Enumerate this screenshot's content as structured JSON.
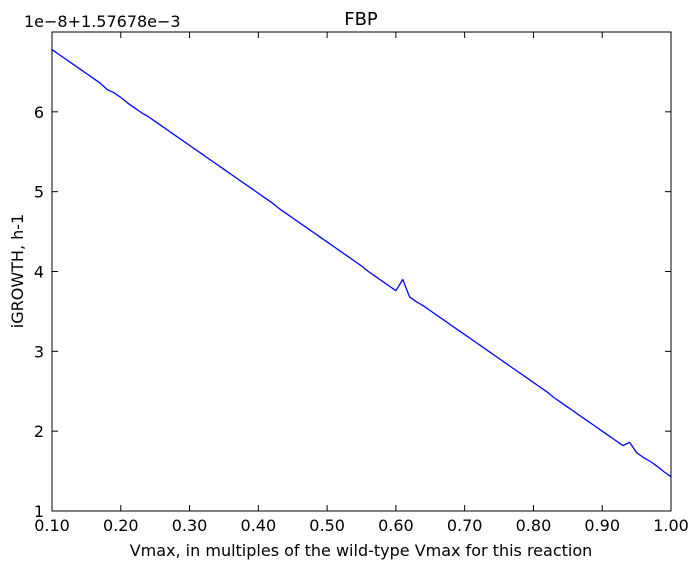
{
  "chart_data": {
    "type": "line",
    "title": "FBP",
    "xlabel": "Vmax, in multiples of the wild-type Vmax for this reaction",
    "ylabel": "iGROWTH, h-1",
    "y_offset_label": "1e−8+1.57678e−3",
    "xlim": [
      0.1,
      1.0
    ],
    "ylim": [
      1,
      7
    ],
    "grid": false,
    "line_color": "#0000ff",
    "x_ticks": [
      0.1,
      0.2,
      0.3,
      0.4,
      0.5,
      0.6,
      0.7,
      0.8,
      0.9,
      1.0
    ],
    "x_tick_labels": [
      "0.10",
      "0.20",
      "0.30",
      "0.40",
      "0.50",
      "0.60",
      "0.70",
      "0.80",
      "0.90",
      "1.00"
    ],
    "y_ticks": [
      1,
      2,
      3,
      4,
      5,
      6
    ],
    "y_tick_labels": [
      "1",
      "2",
      "3",
      "4",
      "5",
      "6"
    ],
    "series": [
      {
        "x": [
          0.1,
          0.11,
          0.12,
          0.13,
          0.14,
          0.15,
          0.16,
          0.17,
          0.18,
          0.19,
          0.2,
          0.21,
          0.22,
          0.23,
          0.24,
          0.25,
          0.26,
          0.27,
          0.28,
          0.29,
          0.3,
          0.31,
          0.32,
          0.33,
          0.34,
          0.35,
          0.36,
          0.37,
          0.38,
          0.39,
          0.4,
          0.41,
          0.42,
          0.43,
          0.44,
          0.45,
          0.46,
          0.47,
          0.48,
          0.49,
          0.5,
          0.51,
          0.52,
          0.53,
          0.54,
          0.55,
          0.56,
          0.57,
          0.58,
          0.59,
          0.6,
          0.61,
          0.62,
          0.63,
          0.64,
          0.65,
          0.66,
          0.67,
          0.68,
          0.69,
          0.7,
          0.71,
          0.72,
          0.73,
          0.74,
          0.75,
          0.76,
          0.77,
          0.78,
          0.79,
          0.8,
          0.81,
          0.82,
          0.83,
          0.84,
          0.85,
          0.86,
          0.87,
          0.88,
          0.89,
          0.9,
          0.91,
          0.92,
          0.93,
          0.94,
          0.95,
          0.96,
          0.97,
          0.98,
          0.99,
          1.0
        ],
        "y": [
          6.78,
          6.72,
          6.66,
          6.6,
          6.54,
          6.48,
          6.42,
          6.36,
          6.28,
          6.24,
          6.18,
          6.11,
          6.05,
          5.99,
          5.94,
          5.88,
          5.82,
          5.76,
          5.7,
          5.64,
          5.58,
          5.52,
          5.46,
          5.4,
          5.34,
          5.28,
          5.22,
          5.16,
          5.1,
          5.04,
          4.98,
          4.92,
          4.86,
          4.79,
          4.73,
          4.67,
          4.61,
          4.55,
          4.49,
          4.43,
          4.37,
          4.31,
          4.25,
          4.19,
          4.13,
          4.07,
          4.0,
          3.94,
          3.88,
          3.82,
          3.76,
          3.9,
          3.68,
          3.62,
          3.57,
          3.51,
          3.45,
          3.39,
          3.33,
          3.27,
          3.21,
          3.15,
          3.09,
          3.03,
          2.97,
          2.91,
          2.85,
          2.79,
          2.73,
          2.67,
          2.61,
          2.55,
          2.49,
          2.42,
          2.36,
          2.3,
          2.24,
          2.18,
          2.12,
          2.06,
          2.0,
          1.94,
          1.88,
          1.82,
          1.86,
          1.73,
          1.67,
          1.62,
          1.56,
          1.49,
          1.43
        ]
      }
    ]
  }
}
